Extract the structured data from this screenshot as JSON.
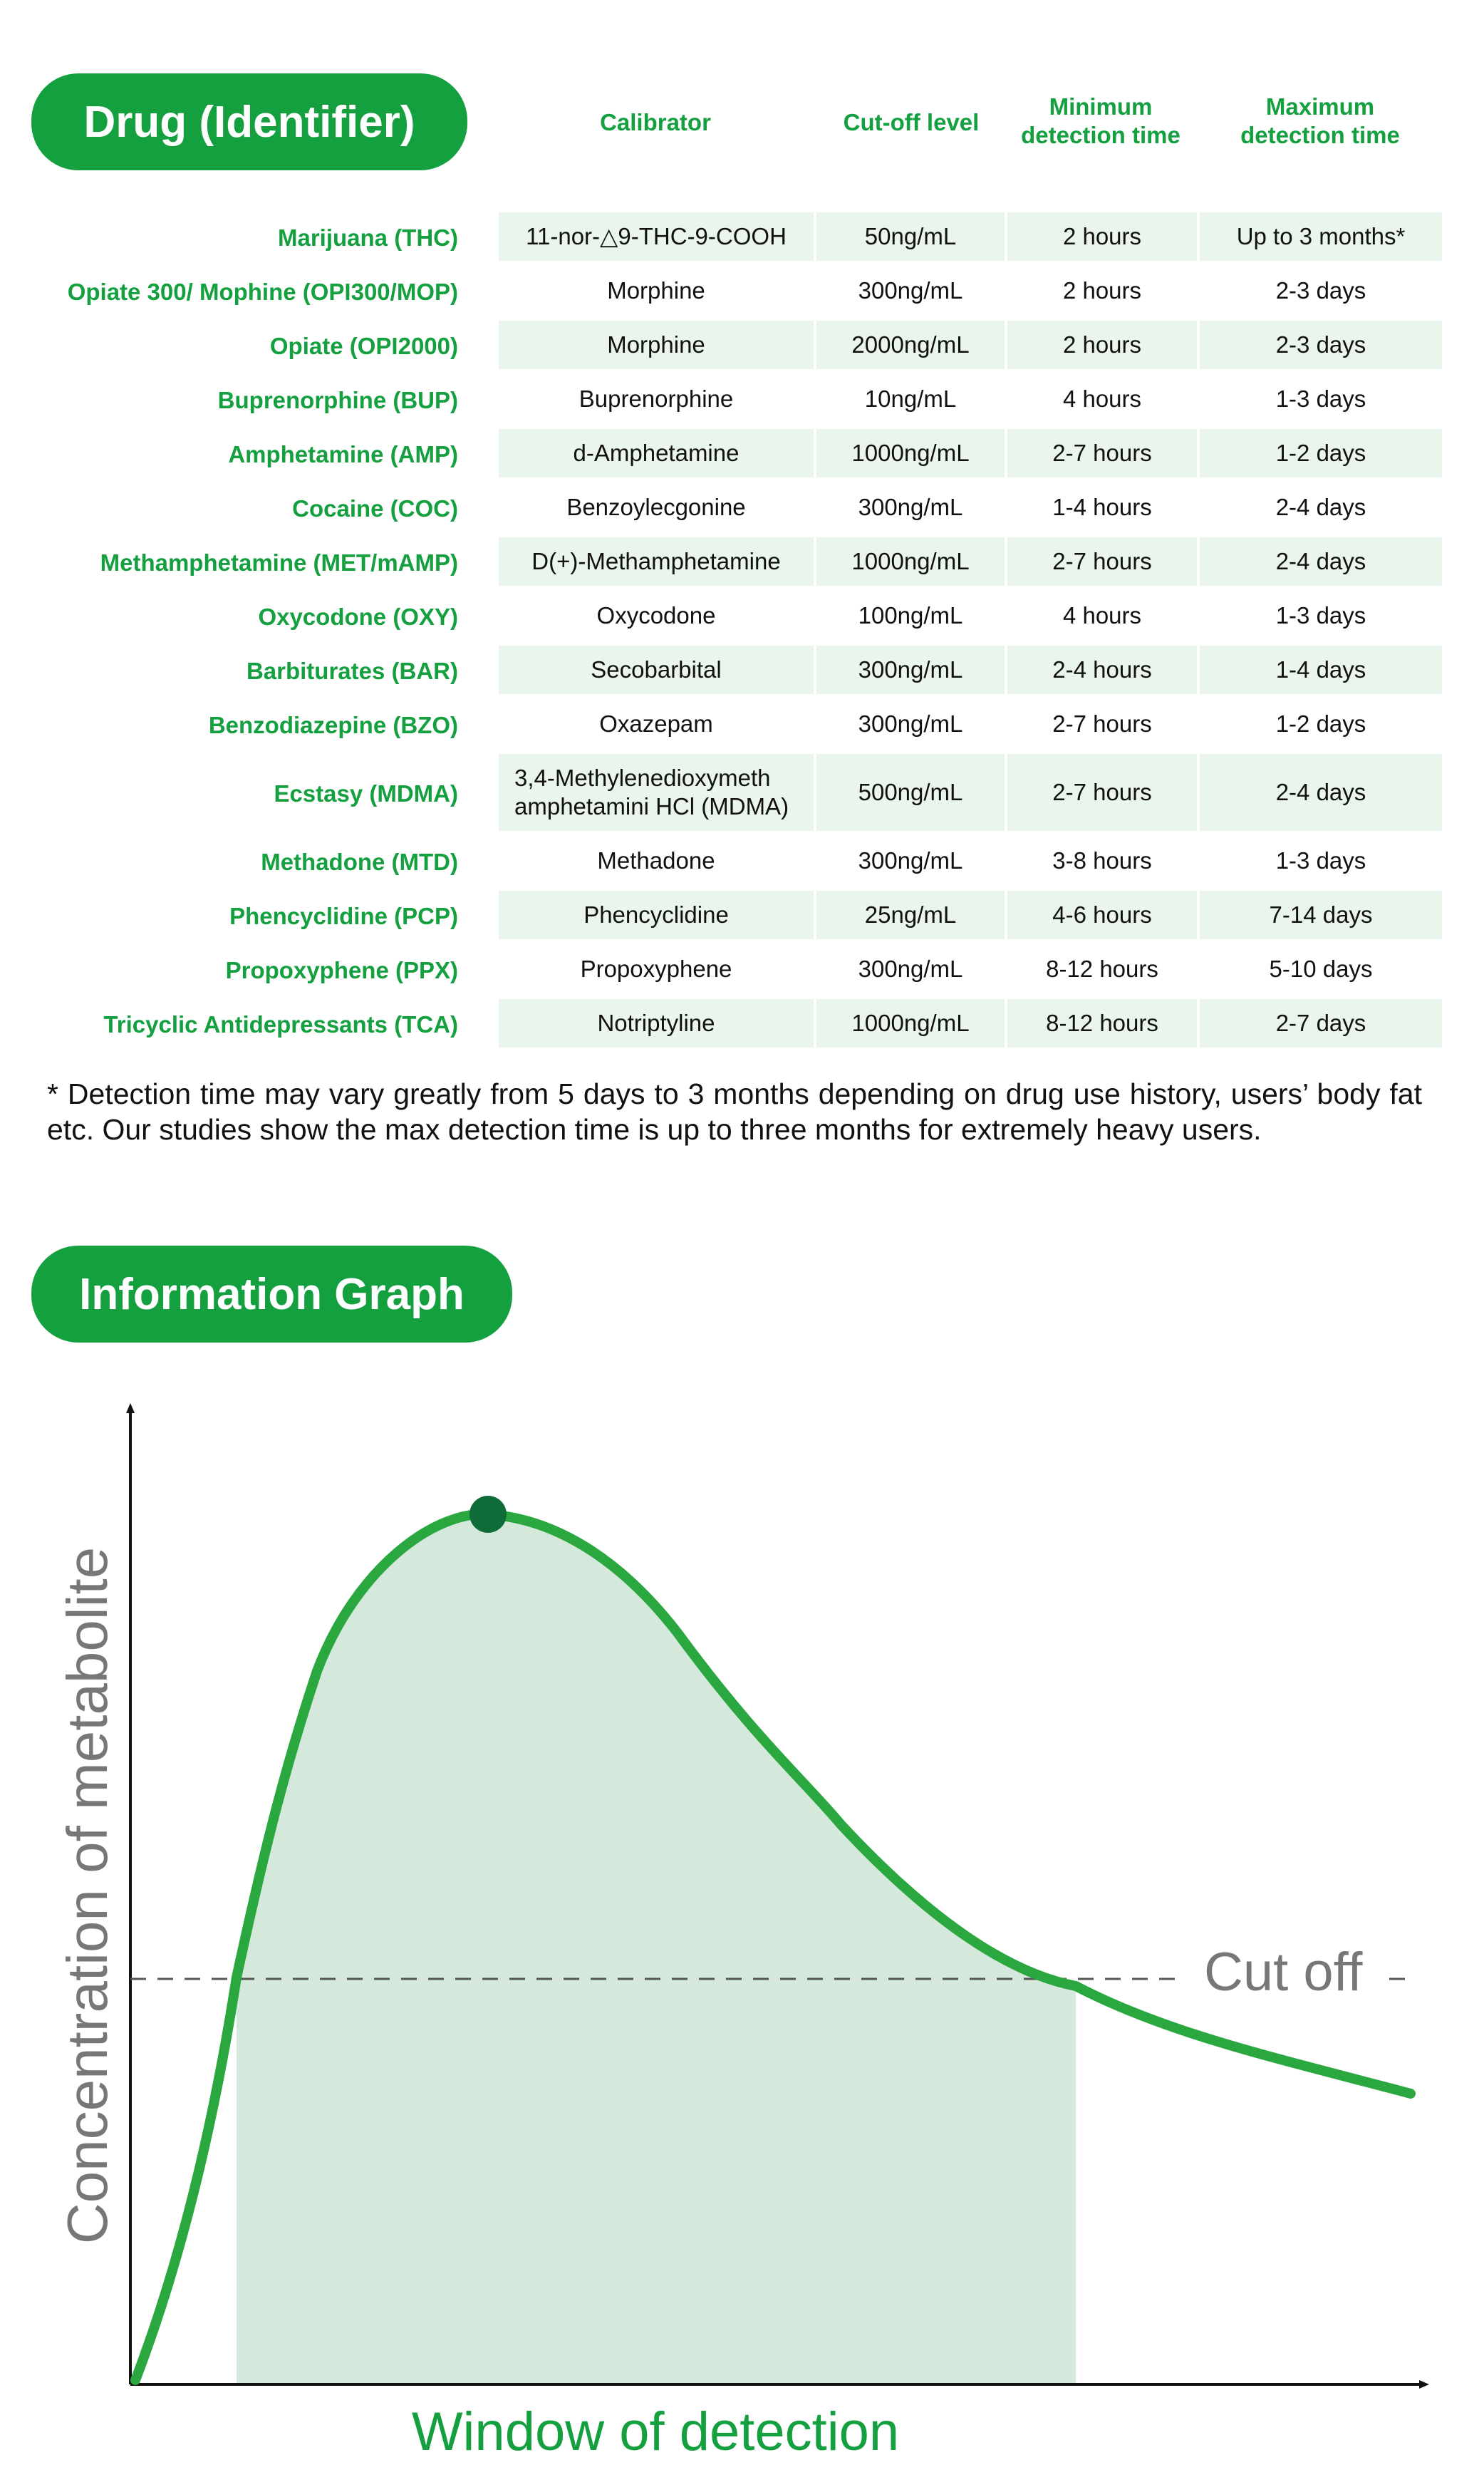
{
  "drug_section": {
    "title": "Drug (Identifier)"
  },
  "columns": {
    "calibrator": "Calibrator",
    "cutoff": "Cut-off level",
    "min_line1": "Minimum",
    "min_line2": "detection time",
    "max_line1": "Maximum",
    "max_line2": "detection time"
  },
  "rows": [
    {
      "drug": "Marijuana (THC)",
      "calibrator": "11-nor-△9-THC-9-COOH",
      "cutoff": "50ng/mL",
      "min": "2 hours",
      "max": "Up to 3 months*"
    },
    {
      "drug": "Opiate 300/ Mophine (OPI300/MOP)",
      "calibrator": "Morphine",
      "cutoff": "300ng/mL",
      "min": "2 hours",
      "max": "2-3 days"
    },
    {
      "drug": "Opiate (OPI2000)",
      "calibrator": "Morphine",
      "cutoff": "2000ng/mL",
      "min": "2 hours",
      "max": "2-3 days"
    },
    {
      "drug": "Buprenorphine (BUP)",
      "calibrator": "Buprenorphine",
      "cutoff": "10ng/mL",
      "min": "4 hours",
      "max": "1-3 days"
    },
    {
      "drug": "Amphetamine (AMP)",
      "calibrator": "d-Amphetamine",
      "cutoff": "1000ng/mL",
      "min": "2-7 hours",
      "max": "1-2 days"
    },
    {
      "drug": "Cocaine (COC)",
      "calibrator": "Benzoylecgonine",
      "cutoff": "300ng/mL",
      "min": "1-4 hours",
      "max": "2-4 days"
    },
    {
      "drug": "Methamphetamine (MET/mAMP)",
      "calibrator": "D(+)-Methamphetamine",
      "cutoff": "1000ng/mL",
      "min": "2-7 hours",
      "max": "2-4 days"
    },
    {
      "drug": "Oxycodone (OXY)",
      "calibrator": "Oxycodone",
      "cutoff": "100ng/mL",
      "min": "4 hours",
      "max": "1-3 days"
    },
    {
      "drug": "Barbiturates (BAR)",
      "calibrator": "Secobarbital",
      "cutoff": "300ng/mL",
      "min": "2-4 hours",
      "max": "1-4 days"
    },
    {
      "drug": "Benzodiazepine (BZO)",
      "calibrator": "Oxazepam",
      "cutoff": "300ng/mL",
      "min": "2-7 hours",
      "max": "1-2 days"
    },
    {
      "drug": "Ecstasy (MDMA)",
      "calibrator_line1": "3,4-Methylenedioxymeth",
      "calibrator_line2": "amphetamini HCl (MDMA)",
      "cutoff": "500ng/mL",
      "min": "2-7 hours",
      "max": "2-4 days"
    },
    {
      "drug": "Methadone (MTD)",
      "calibrator": "Methadone",
      "cutoff": "300ng/mL",
      "min": "3-8 hours",
      "max": "1-3 days"
    },
    {
      "drug": "Phencyclidine (PCP)",
      "calibrator": "Phencyclidine",
      "cutoff": "25ng/mL",
      "min": "4-6 hours",
      "max": "7-14 days"
    },
    {
      "drug": "Propoxyphene (PPX)",
      "calibrator": "Propoxyphene",
      "cutoff": "300ng/mL",
      "min": "8-12 hours",
      "max": "5-10 days"
    },
    {
      "drug": "Tricyclic Antidepressants (TCA)",
      "calibrator": "Notriptyline",
      "cutoff": "1000ng/mL",
      "min": "8-12 hours",
      "max": "2-7 days"
    }
  ],
  "footnote": "* Detection time may vary greatly from 5 days to 3 months depending on drug use history, users’ body fat etc. Our studies show the max detection time is up to three months for extremely heavy users.",
  "graph_section": {
    "title": "Information Graph"
  },
  "graph": {
    "ylabel": "Concentration of metabolite",
    "xlabel": "Window of detection",
    "cutoff_label": "Cut off",
    "colors": {
      "curve": "#2aa83f",
      "fill": "#d4e8dc",
      "peak": "#0f6b37",
      "axis": "#111111",
      "cutoff_line": "#555555",
      "label": "#777777",
      "xlabel": "#15a040"
    }
  }
}
